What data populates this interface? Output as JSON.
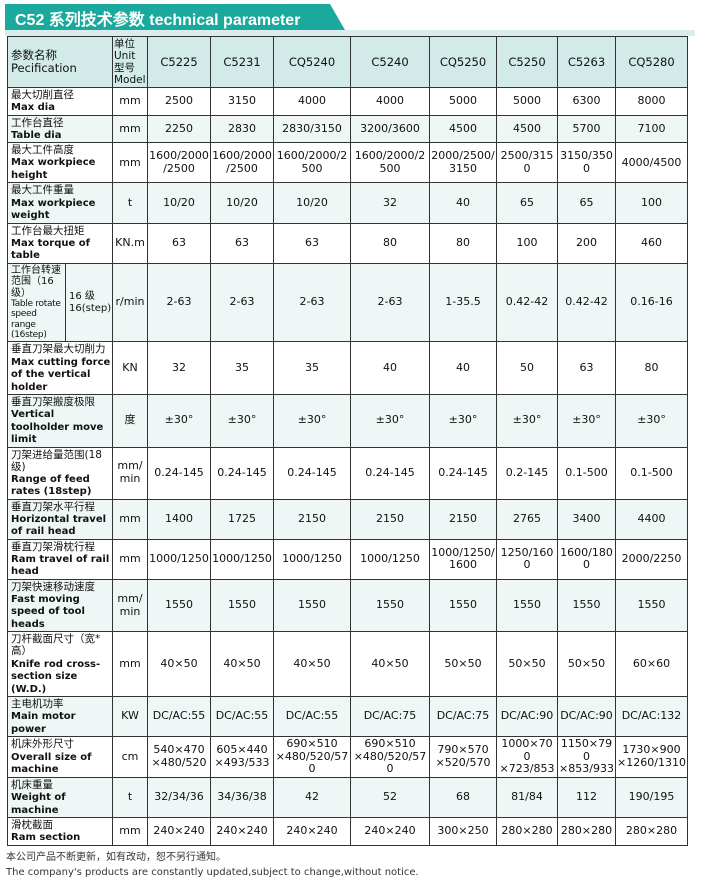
{
  "title": "C52 系列技术参数  technical parameter",
  "header": {
    "spec_cn": "参数名称",
    "spec_en": "Pecification",
    "unit": "单位 Unit 型号 Model",
    "models": [
      "C5225",
      "C5231",
      "CQ5240",
      "C5240",
      "CQ5250",
      "C5250",
      "C5263",
      "CQ5280"
    ]
  },
  "rows": [
    {
      "cn": "最大切削直径",
      "en": "Max dia",
      "unit": "mm",
      "values": [
        "2500",
        "3150",
        "4000",
        "4000",
        "5000",
        "5000",
        "6300",
        "8000"
      ]
    },
    {
      "cn": "工作台直径",
      "en": "Table dia",
      "unit": "mm",
      "values": [
        "2250",
        "2830",
        "2830/3150",
        "3200/3600",
        "4500",
        "4500",
        "5700",
        "7100"
      ]
    },
    {
      "cn": "最大工件高度",
      "en": "Max workpiece height",
      "unit": "mm",
      "values": [
        "1600/2000/2500",
        "1600/2000/2500",
        "1600/2000/2500",
        "1600/2000/2500",
        "2000/2500/3150",
        "2500/3150",
        "3150/3500",
        "4000/4500"
      ]
    },
    {
      "cn": "最大工件重量",
      "en": "Max workpiece weight",
      "unit": "t",
      "values": [
        "10/20",
        "10/20",
        "10/20",
        "32",
        "40",
        "65",
        "65",
        "100"
      ]
    },
    {
      "cn": "工作台最大扭矩",
      "en": "Max torque of table",
      "unit": "KN.m",
      "values": [
        "63",
        "63",
        "63",
        "80",
        "80",
        "100",
        "200",
        "460"
      ]
    },
    {
      "cn": "工作台转速范围（16级）",
      "en": "Table rotate speed range (16step)",
      "sub": "16 级 16(step)",
      "unit": "r/min",
      "values": [
        "2-63",
        "2-63",
        "2-63",
        "2-63",
        "1-35.5",
        "0.42-42",
        "0.42-42",
        "0.16-16"
      ]
    },
    {
      "cn": "垂直刀架最大切削力",
      "en": "Max cutting force of the vertical holder",
      "unit": "KN",
      "values": [
        "32",
        "35",
        "35",
        "40",
        "40",
        "50",
        "63",
        "80"
      ]
    },
    {
      "cn": "垂直刀架搬度极限",
      "en": "Vertical toolholder move limit",
      "unit": "度",
      "values": [
        "±30°",
        "±30°",
        "±30°",
        "±30°",
        "±30°",
        "±30°",
        "±30°",
        "±30°"
      ]
    },
    {
      "cn": "刀架进给量范围(18级)",
      "en": "Range of feed rates (18step)",
      "unit": "mm/min",
      "values": [
        "0.24-145",
        "0.24-145",
        "0.24-145",
        "0.24-145",
        "0.24-145",
        "0.2-145",
        "0.1-500",
        "0.1-500"
      ]
    },
    {
      "cn": "垂直刀架水平行程",
      "en": "Horizontal travel of rail head",
      "unit": "mm",
      "values": [
        "1400",
        "1725",
        "2150",
        "2150",
        "2150",
        "2765",
        "3400",
        "4400"
      ]
    },
    {
      "cn": "垂直刀架滑枕行程",
      "en": "Ram travel of rail head",
      "unit": "mm",
      "values": [
        "1000/1250",
        "1000/1250",
        "1000/1250",
        "1000/1250",
        "1000/1250/1600",
        "1250/1600",
        "1600/1800",
        "2000/2250"
      ]
    },
    {
      "cn": "刀架快速移动速度",
      "en": "Fast moving speed of tool heads",
      "unit": "mm/min",
      "values": [
        "1550",
        "1550",
        "1550",
        "1550",
        "1550",
        "1550",
        "1550",
        "1550"
      ]
    },
    {
      "cn": "刀杆截面尺寸（宽*高）",
      "en": "Knife rod cross-section size (W.D.)",
      "unit": "mm",
      "values": [
        "40×50",
        "40×50",
        "40×50",
        "40×50",
        "50×50",
        "50×50",
        "50×50",
        "60×60"
      ]
    },
    {
      "cn": "主电机功率",
      "en": "Main motor power",
      "unit": "KW",
      "values": [
        "DC/AC:55",
        "DC/AC:55",
        "DC/AC:55",
        "DC/AC:75",
        "DC/AC:75",
        "DC/AC:90",
        "DC/AC:90",
        "DC/AC:132"
      ]
    },
    {
      "cn": "机床外形尺寸",
      "en": "Overall size of machine",
      "unit": "cm",
      "values": [
        "540×470 ×480/520",
        "605×440 ×493/533",
        "690×510 ×480/520/570",
        "690×510 ×480/520/570",
        "790×570 ×520/570",
        "1000×700 ×723/853",
        "1150×790 ×853/933",
        "1730×900 ×1260/1310"
      ]
    },
    {
      "cn": "机床重量",
      "en": "Weight of machine",
      "unit": "t",
      "values": [
        "32/34/36",
        "34/36/38",
        "42",
        "52",
        "68",
        "81/84",
        "112",
        "190/195"
      ]
    },
    {
      "cn": "滑枕截面",
      "en": "Ram section",
      "unit": "mm",
      "values": [
        "240×240",
        "240×240",
        "240×240",
        "240×240",
        "300×250",
        "280×280",
        "280×280",
        "280×280"
      ]
    }
  ],
  "footer": {
    "cn": "本公司产品不断更新，如有改动，恕不另行通知。",
    "en": "The company's products are constantly updated,subject to change,without notice."
  }
}
